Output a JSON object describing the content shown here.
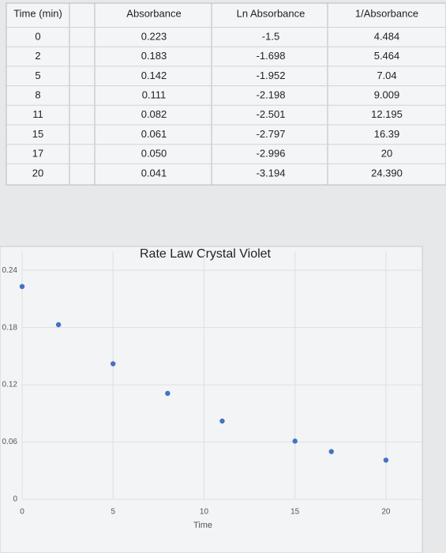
{
  "table": {
    "header": [
      "Time (min)",
      "Absorbance",
      "Ln Absorbance",
      "1/Absorbance"
    ],
    "rows": [
      [
        "0",
        "0.223",
        "-1.5",
        "4.484"
      ],
      [
        "2",
        "0.183",
        "-1.698",
        "5.464"
      ],
      [
        "5",
        "0.142",
        "-1.952",
        "7.04"
      ],
      [
        "8",
        "0.111",
        "-2.198",
        "9.009"
      ],
      [
        "11",
        "0.082",
        "-2.501",
        "12.195"
      ],
      [
        "15",
        "0.061",
        "-2.797",
        "16.39"
      ],
      [
        "17",
        "0.050",
        "-2.996",
        "20"
      ],
      [
        "20",
        "0.041",
        "-3.194",
        "24.390"
      ]
    ]
  },
  "chart_data": {
    "type": "scatter",
    "title": "Rate Law Crystal Violet",
    "x_label": "Time",
    "x": [
      0,
      2,
      5,
      8,
      11,
      15,
      17,
      20
    ],
    "series": [
      {
        "name": "Absorbance",
        "color": "#4472c4",
        "values": [
          0.223,
          0.183,
          0.142,
          0.111,
          0.082,
          0.061,
          0.05,
          0.041
        ]
      }
    ],
    "xlim": [
      0,
      22
    ],
    "xticks": [
      0,
      5,
      10,
      15,
      20
    ],
    "ylim": [
      0,
      0.26
    ],
    "yticks": [
      0,
      0.06,
      0.12,
      0.18,
      0.24
    ],
    "grid": true
  }
}
